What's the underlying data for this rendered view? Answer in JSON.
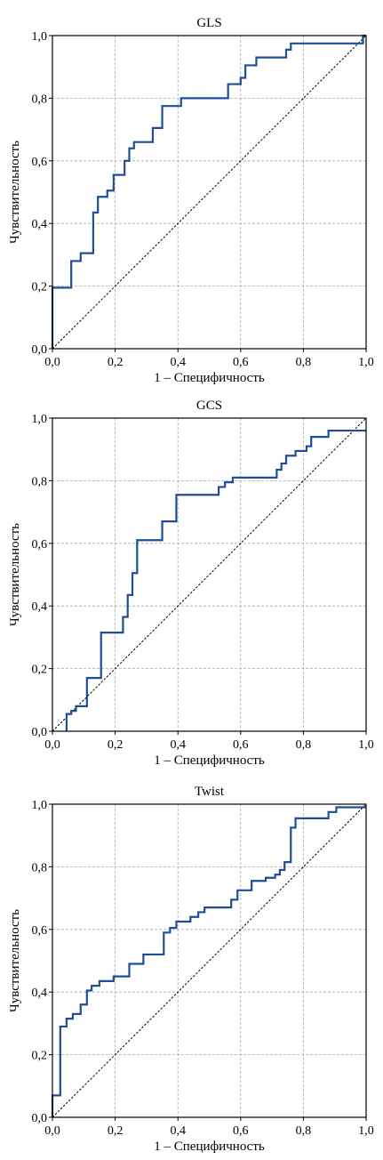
{
  "chart_data": [
    {
      "type": "line",
      "title": "GLS",
      "xlabel": "1 – Специфичность",
      "ylabel": "Чувствительность",
      "xlim": [
        0,
        1
      ],
      "ylim": [
        0,
        1
      ],
      "xticks": [
        "0,0",
        "0,2",
        "0,4",
        "0,6",
        "0,8",
        "1,0"
      ],
      "yticks": [
        "0,0",
        "0,2",
        "0,4",
        "0,6",
        "0,8",
        "1,0"
      ],
      "grid": true,
      "reference_line": true,
      "series": [
        {
          "color": "#1f4e96",
          "x": [
            0,
            0,
            0.06,
            0.06,
            0.09,
            0.09,
            0.13,
            0.13,
            0.145,
            0.145,
            0.175,
            0.175,
            0.195,
            0.195,
            0.23,
            0.23,
            0.245,
            0.245,
            0.26,
            0.26,
            0.32,
            0.32,
            0.35,
            0.35,
            0.41,
            0.41,
            0.56,
            0.56,
            0.6,
            0.6,
            0.615,
            0.615,
            0.65,
            0.65,
            0.745,
            0.745,
            0.76,
            0.76,
            0.99,
            0.99,
            1.0
          ],
          "y": [
            0,
            0.195,
            0.195,
            0.28,
            0.28,
            0.305,
            0.305,
            0.435,
            0.435,
            0.485,
            0.485,
            0.505,
            0.505,
            0.555,
            0.555,
            0.6,
            0.6,
            0.64,
            0.64,
            0.66,
            0.66,
            0.705,
            0.705,
            0.775,
            0.775,
            0.8,
            0.8,
            0.845,
            0.845,
            0.865,
            0.865,
            0.905,
            0.905,
            0.93,
            0.93,
            0.955,
            0.955,
            0.975,
            0.975,
            1.0,
            1.0
          ]
        }
      ]
    },
    {
      "type": "line",
      "title": "GCS",
      "xlabel": "1 – Специфичность",
      "ylabel": "Чувствительность",
      "xlim": [
        0,
        1
      ],
      "ylim": [
        0,
        1
      ],
      "xticks": [
        "0,0",
        "0,2",
        "0,4",
        "0,6",
        "0,8",
        "1,0"
      ],
      "yticks": [
        "0,0",
        "0,2",
        "0,4",
        "0,6",
        "0,8",
        "1,0"
      ],
      "grid": true,
      "reference_line": true,
      "series": [
        {
          "color": "#1f4e96",
          "x": [
            0.045,
            0.045,
            0.06,
            0.06,
            0.075,
            0.075,
            0.11,
            0.11,
            0.155,
            0.155,
            0.225,
            0.225,
            0.24,
            0.24,
            0.255,
            0.255,
            0.27,
            0.27,
            0.285,
            0.285,
            0.35,
            0.35,
            0.395,
            0.395,
            0.53,
            0.53,
            0.55,
            0.55,
            0.575,
            0.575,
            0.715,
            0.715,
            0.73,
            0.73,
            0.745,
            0.745,
            0.775,
            0.775,
            0.81,
            0.81,
            0.825,
            0.825,
            0.88,
            0.88,
            0.91,
            0.91,
            1.0
          ],
          "y": [
            0,
            0.055,
            0.055,
            0.065,
            0.065,
            0.08,
            0.08,
            0.17,
            0.17,
            0.315,
            0.315,
            0.365,
            0.365,
            0.435,
            0.435,
            0.505,
            0.505,
            0.61,
            0.61,
            0.61,
            0.61,
            0.67,
            0.67,
            0.755,
            0.755,
            0.78,
            0.78,
            0.795,
            0.795,
            0.81,
            0.81,
            0.835,
            0.835,
            0.855,
            0.855,
            0.88,
            0.88,
            0.895,
            0.895,
            0.91,
            0.91,
            0.94,
            0.94,
            0.96,
            0.96,
            0.96,
            0.96
          ]
        }
      ]
    },
    {
      "type": "line",
      "title": "Twist",
      "xlabel": "1 – Специфичность",
      "ylabel": "Чувствительность",
      "xlim": [
        0,
        1
      ],
      "ylim": [
        0,
        1
      ],
      "xticks": [
        "0,0",
        "0,2",
        "0,4",
        "0,6",
        "0,8",
        "1,0"
      ],
      "yticks": [
        "0,0",
        "0,2",
        "0,4",
        "0,6",
        "0,8",
        "1,0"
      ],
      "grid": true,
      "reference_line": true,
      "series": [
        {
          "color": "#1f4e96",
          "x": [
            0,
            0,
            0.025,
            0.025,
            0.045,
            0.045,
            0.065,
            0.065,
            0.09,
            0.09,
            0.11,
            0.11,
            0.125,
            0.125,
            0.15,
            0.15,
            0.195,
            0.195,
            0.245,
            0.245,
            0.29,
            0.29,
            0.355,
            0.355,
            0.375,
            0.375,
            0.395,
            0.395,
            0.44,
            0.44,
            0.465,
            0.465,
            0.485,
            0.485,
            0.57,
            0.57,
            0.59,
            0.59,
            0.635,
            0.635,
            0.68,
            0.68,
            0.71,
            0.71,
            0.725,
            0.725,
            0.74,
            0.74,
            0.76,
            0.76,
            0.775,
            0.775,
            0.88,
            0.88,
            0.905,
            0.905,
            0.93,
            0.93,
            1.0
          ],
          "y": [
            0,
            0.07,
            0.07,
            0.29,
            0.29,
            0.315,
            0.315,
            0.33,
            0.33,
            0.36,
            0.36,
            0.405,
            0.405,
            0.42,
            0.42,
            0.435,
            0.435,
            0.45,
            0.45,
            0.49,
            0.49,
            0.52,
            0.52,
            0.59,
            0.59,
            0.605,
            0.605,
            0.625,
            0.625,
            0.64,
            0.64,
            0.655,
            0.655,
            0.67,
            0.67,
            0.695,
            0.695,
            0.725,
            0.725,
            0.755,
            0.755,
            0.765,
            0.765,
            0.775,
            0.775,
            0.79,
            0.79,
            0.815,
            0.815,
            0.925,
            0.925,
            0.955,
            0.955,
            0.975,
            0.975,
            0.99,
            0.99,
            0.99,
            0.99
          ]
        }
      ]
    }
  ]
}
